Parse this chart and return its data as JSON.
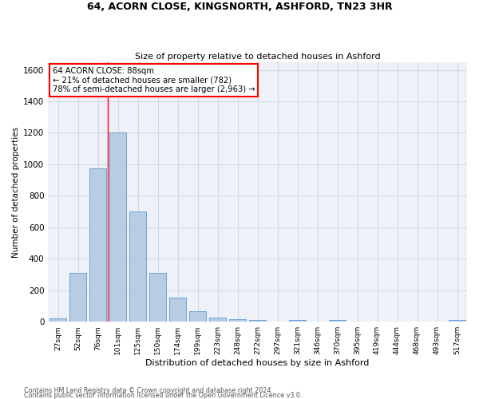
{
  "title1": "64, ACORN CLOSE, KINGSNORTH, ASHFORD, TN23 3HR",
  "title2": "Size of property relative to detached houses in Ashford",
  "xlabel": "Distribution of detached houses by size in Ashford",
  "ylabel": "Number of detached properties",
  "categories": [
    "27sqm",
    "52sqm",
    "76sqm",
    "101sqm",
    "125sqm",
    "150sqm",
    "174sqm",
    "199sqm",
    "223sqm",
    "248sqm",
    "272sqm",
    "297sqm",
    "321sqm",
    "346sqm",
    "370sqm",
    "395sqm",
    "419sqm",
    "444sqm",
    "468sqm",
    "493sqm",
    "517sqm"
  ],
  "values": [
    20,
    310,
    975,
    1200,
    700,
    310,
    155,
    65,
    25,
    15,
    10,
    0,
    10,
    0,
    10,
    0,
    0,
    0,
    0,
    0,
    10
  ],
  "bar_color": "#b8cce4",
  "bar_edge_color": "#5b9bd5",
  "vline_x": 2.5,
  "annotation_line1": "64 ACORN CLOSE: 88sqm",
  "annotation_line2": "← 21% of detached houses are smaller (782)",
  "annotation_line3": "78% of semi-detached houses are larger (2,963) →",
  "annotation_box_color": "white",
  "annotation_box_edge_color": "red",
  "vline_color": "red",
  "ylim": [
    0,
    1650
  ],
  "yticks": [
    0,
    200,
    400,
    600,
    800,
    1000,
    1200,
    1400,
    1600
  ],
  "grid_color": "#d0d8e8",
  "bg_color": "#eef2f8",
  "footer1": "Contains HM Land Registry data © Crown copyright and database right 2024.",
  "footer2": "Contains public sector information licensed under the Open Government Licence v3.0."
}
